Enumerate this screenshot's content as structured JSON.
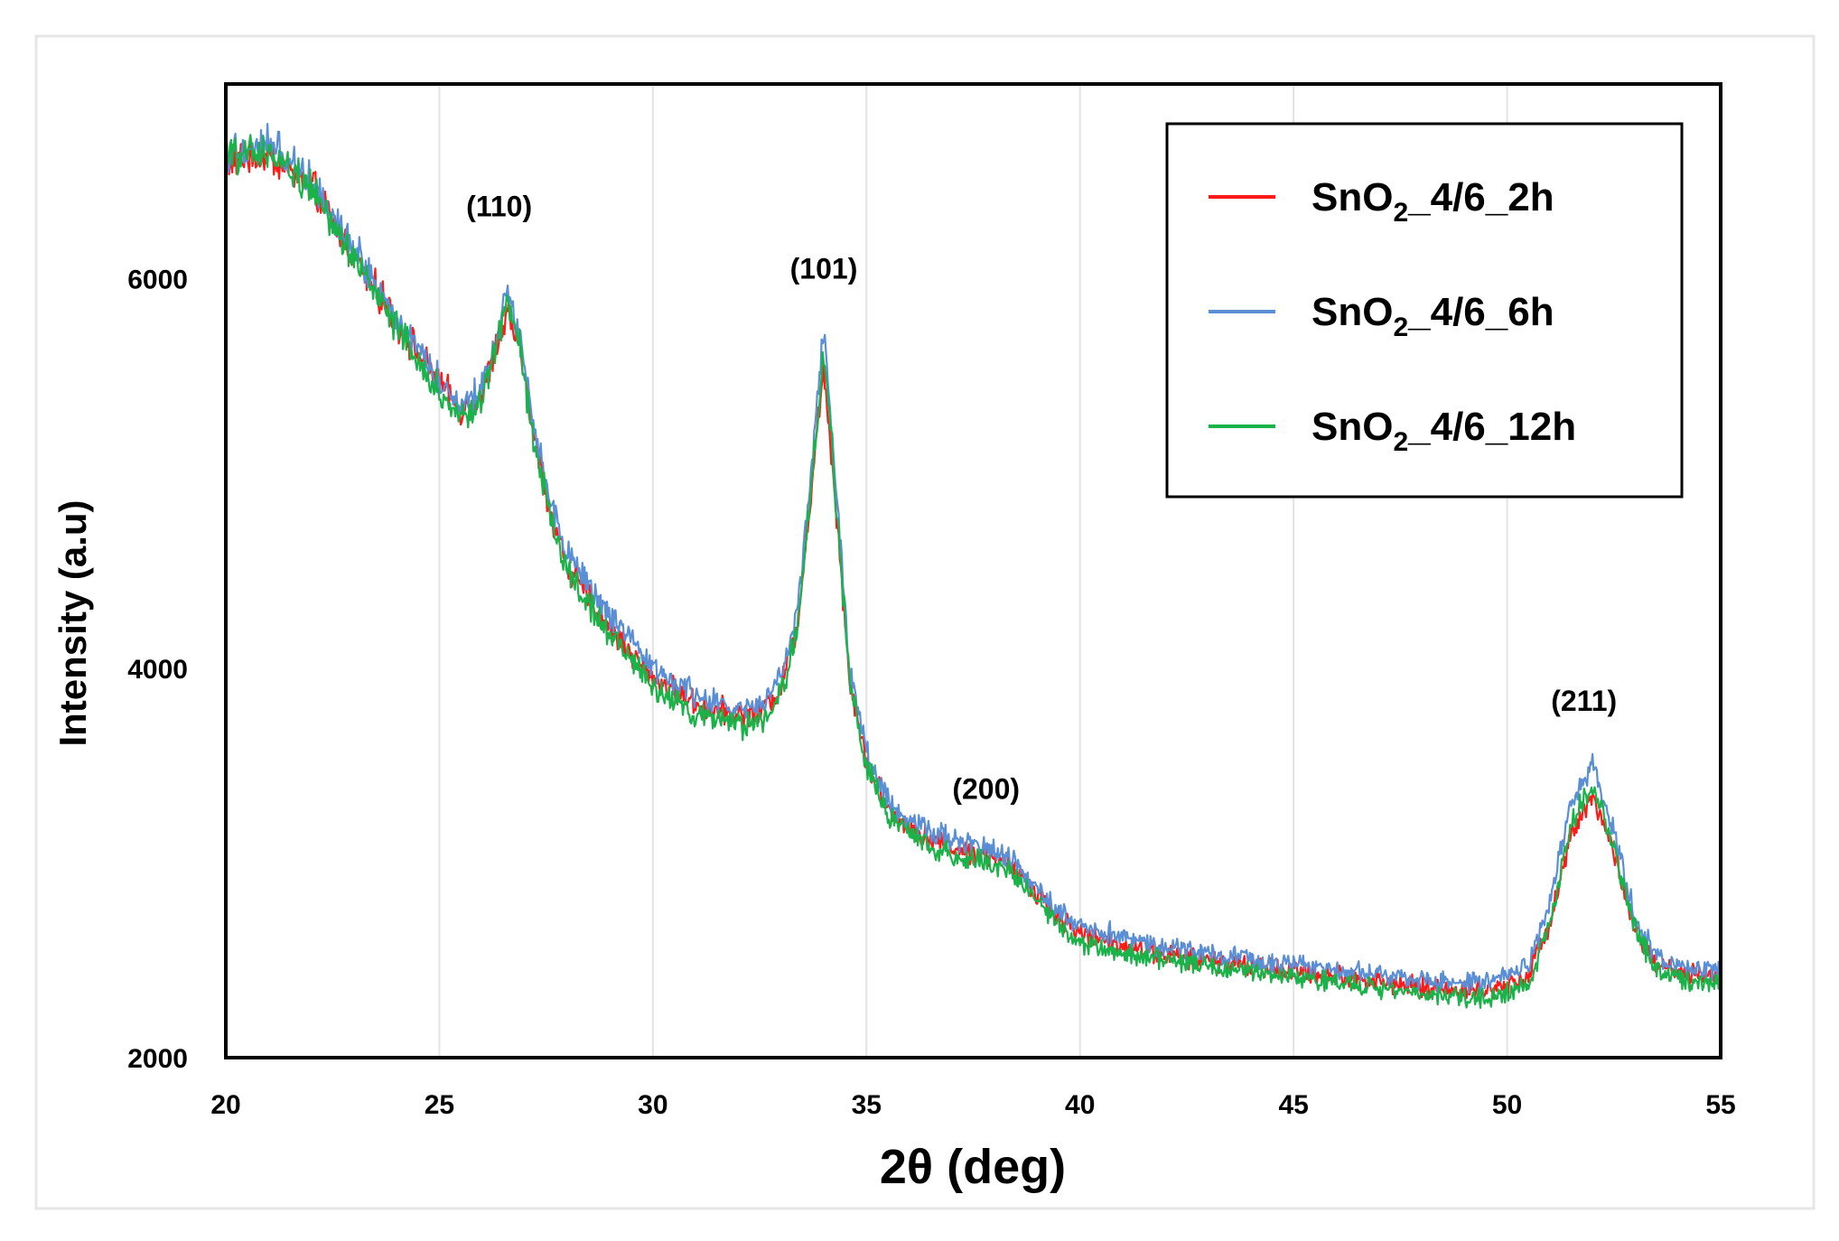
{
  "chart_data": {
    "type": "line",
    "title": "",
    "xlabel": "2θ (deg)",
    "ylabel": "Intensity (a.u)",
    "xlim": [
      20,
      55
    ],
    "ylim": [
      2000,
      7000
    ],
    "xticks": [
      20,
      25,
      30,
      35,
      40,
      45,
      50,
      55
    ],
    "yticks": [
      2000,
      4000,
      6000
    ],
    "grid": "vertical",
    "legend_position": "top-right",
    "x": [
      20,
      21,
      22,
      23,
      24,
      25,
      25.5,
      26,
      26.3,
      26.6,
      26.9,
      27.2,
      27.6,
      28,
      29,
      30,
      31,
      32,
      32.5,
      33,
      33.4,
      33.7,
      34,
      34.3,
      34.6,
      35,
      35.5,
      36,
      37,
      38,
      38.5,
      39,
      39.5,
      40,
      41,
      42,
      44,
      46,
      48,
      49.5,
      50.5,
      51,
      51.5,
      52,
      52.5,
      53,
      53.5,
      54,
      55
    ],
    "series": [
      {
        "name": "SnO2_4/6_2h",
        "label_main": "SnO",
        "label_sub": "2",
        "label_rest": "_4/6_2h",
        "color": "#ff1a1a",
        "values": [
          6600,
          6630,
          6480,
          6120,
          5780,
          5460,
          5330,
          5400,
          5620,
          5820,
          5650,
          5200,
          4800,
          4520,
          4200,
          3950,
          3820,
          3760,
          3780,
          3900,
          4250,
          4900,
          5550,
          4800,
          3950,
          3520,
          3280,
          3180,
          3080,
          3020,
          2960,
          2850,
          2720,
          2640,
          2580,
          2530,
          2470,
          2420,
          2360,
          2340,
          2420,
          2700,
          3150,
          3350,
          3050,
          2650,
          2480,
          2430,
          2420
        ]
      },
      {
        "name": "SnO2_4/6_6h",
        "label_main": "SnO",
        "label_sub": "2",
        "label_rest": "_4/6_6h",
        "color": "#5a8fd6",
        "values": [
          6640,
          6700,
          6520,
          6160,
          5800,
          5480,
          5350,
          5440,
          5680,
          5950,
          5700,
          5250,
          4860,
          4580,
          4260,
          4000,
          3860,
          3780,
          3800,
          3950,
          4320,
          5000,
          5750,
          4900,
          4000,
          3570,
          3320,
          3220,
          3120,
          3060,
          3000,
          2880,
          2750,
          2680,
          2620,
          2570,
          2500,
          2460,
          2400,
          2380,
          2470,
          2800,
          3300,
          3500,
          3150,
          2720,
          2520,
          2460,
          2450
        ]
      },
      {
        "name": "SnO2_4/6_12h",
        "label_main": "SnO",
        "label_sub": "2",
        "label_rest": "_4/6_12h",
        "color": "#1bb24a",
        "values": [
          6620,
          6650,
          6480,
          6100,
          5740,
          5420,
          5280,
          5380,
          5640,
          5880,
          5640,
          5170,
          4780,
          4500,
          4170,
          3900,
          3760,
          3700,
          3720,
          3860,
          4230,
          4920,
          5600,
          4820,
          3960,
          3500,
          3240,
          3140,
          3040,
          2990,
          2930,
          2810,
          2680,
          2590,
          2540,
          2500,
          2440,
          2390,
          2320,
          2300,
          2380,
          2680,
          3200,
          3400,
          3080,
          2660,
          2450,
          2400,
          2380
        ]
      }
    ],
    "annotations": [
      {
        "text": "(110)",
        "x": 26.4,
        "y": 6320
      },
      {
        "text": "(101)",
        "x": 34.0,
        "y": 6000
      },
      {
        "text": "(200)",
        "x": 37.8,
        "y": 3330
      },
      {
        "text": "(211)",
        "x": 51.8,
        "y": 3780
      }
    ]
  }
}
